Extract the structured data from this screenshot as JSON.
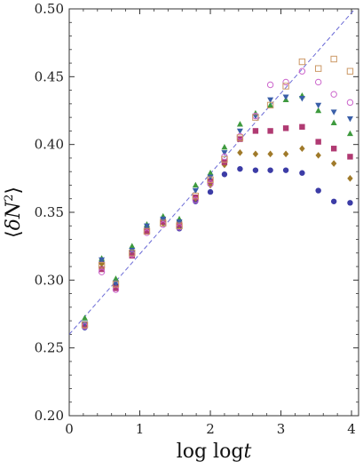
{
  "chart_data": {
    "type": "scatter",
    "title": "",
    "xlabel": "log log",
    "xlabel_italic_var": "t",
    "ylabel_open": "⟨",
    "ylabel_delta": "δ",
    "ylabel_var": "N",
    "ylabel_sup": "2",
    "ylabel_close": "⟩",
    "xlim": [
      0,
      4.1
    ],
    "ylim": [
      0.2,
      0.5
    ],
    "xticks": [
      0,
      1,
      2,
      3,
      4
    ],
    "yticks": [
      0.2,
      0.25,
      0.3,
      0.35,
      0.4,
      0.45,
      0.5
    ],
    "xtick_labels": [
      "0",
      "1",
      "2",
      "3",
      "4"
    ],
    "ytick_labels": [
      "0.20",
      "0.25",
      "0.30",
      "0.35",
      "0.40",
      "0.45",
      "0.50"
    ],
    "grid": false,
    "reference_line": {
      "style": "dashed",
      "color": "#6b6bd6",
      "x": [
        0,
        4.1
      ],
      "y": [
        0.26,
        0.503
      ]
    },
    "series": [
      {
        "marker": "filled-circle",
        "color": "#3c3ca6",
        "x": [
          0.22,
          0.46,
          0.66,
          0.89,
          1.1,
          1.33,
          1.56,
          1.79,
          2.0,
          2.2,
          2.42,
          2.64,
          2.85,
          3.07,
          3.3,
          3.53,
          3.75,
          3.98
        ],
        "y": [
          0.265,
          0.313,
          0.296,
          0.321,
          0.338,
          0.343,
          0.338,
          0.358,
          0.365,
          0.378,
          0.382,
          0.381,
          0.381,
          0.381,
          0.379,
          0.366,
          0.358,
          0.357
        ]
      },
      {
        "marker": "filled-diamond",
        "color": "#a07a2a",
        "x": [
          0.22,
          0.46,
          0.66,
          0.89,
          1.1,
          1.33,
          1.56,
          1.79,
          2.0,
          2.2,
          2.42,
          2.64,
          2.85,
          3.07,
          3.3,
          3.53,
          3.75,
          3.98
        ],
        "y": [
          0.266,
          0.312,
          0.295,
          0.32,
          0.337,
          0.342,
          0.34,
          0.36,
          0.37,
          0.385,
          0.394,
          0.393,
          0.393,
          0.393,
          0.397,
          0.392,
          0.386,
          0.375
        ]
      },
      {
        "marker": "filled-square",
        "color": "#b03a72",
        "x": [
          0.22,
          0.46,
          0.66,
          0.89,
          1.1,
          1.33,
          1.56,
          1.79,
          2.0,
          2.2,
          2.42,
          2.64,
          2.85,
          3.07,
          3.3,
          3.53,
          3.75,
          3.98
        ],
        "y": [
          0.267,
          0.308,
          0.294,
          0.318,
          0.336,
          0.343,
          0.341,
          0.361,
          0.373,
          0.387,
          0.404,
          0.41,
          0.41,
          0.412,
          0.413,
          0.402,
          0.397,
          0.391
        ]
      },
      {
        "marker": "filled-triangle-up",
        "color": "#3e9a3e",
        "x": [
          0.22,
          0.46,
          0.66,
          0.89,
          1.1,
          1.33,
          1.56,
          1.79,
          2.0,
          2.2,
          2.42,
          2.64,
          2.85,
          3.07,
          3.3,
          3.53,
          3.75,
          3.98
        ],
        "y": [
          0.272,
          0.316,
          0.301,
          0.325,
          0.341,
          0.347,
          0.345,
          0.37,
          0.379,
          0.398,
          0.415,
          0.423,
          0.429,
          0.433,
          0.436,
          0.425,
          0.416,
          0.408
        ]
      },
      {
        "marker": "filled-triangle-down",
        "color": "#3a5fa8",
        "x": [
          0.22,
          0.46,
          0.66,
          0.89,
          1.1,
          1.33,
          1.56,
          1.79,
          2.0,
          2.2,
          2.42,
          2.64,
          2.85,
          3.07,
          3.3,
          3.53,
          3.75,
          3.98
        ],
        "y": [
          0.268,
          0.315,
          0.298,
          0.322,
          0.34,
          0.345,
          0.343,
          0.366,
          0.376,
          0.394,
          0.41,
          0.421,
          0.433,
          0.435,
          0.434,
          0.429,
          0.424,
          0.419
        ]
      },
      {
        "marker": "open-circle",
        "color": "#cc66cc",
        "x": [
          0.22,
          0.46,
          0.66,
          0.89,
          1.1,
          1.33,
          1.56,
          1.79,
          2.0,
          2.2,
          2.42,
          2.64,
          2.85,
          3.07,
          3.3,
          3.53,
          3.75,
          3.98
        ],
        "y": [
          0.266,
          0.306,
          0.293,
          0.319,
          0.335,
          0.341,
          0.339,
          0.359,
          0.371,
          0.391,
          0.406,
          0.421,
          0.444,
          0.446,
          0.454,
          0.446,
          0.437,
          0.431
        ]
      },
      {
        "marker": "open-square",
        "color": "#cc9966",
        "x": [
          0.22,
          0.46,
          0.66,
          0.89,
          1.1,
          1.33,
          1.56,
          1.79,
          2.0,
          2.2,
          2.42,
          2.64,
          2.85,
          3.07,
          3.3,
          3.53,
          3.75,
          3.98
        ],
        "y": [
          0.267,
          0.311,
          0.297,
          0.32,
          0.336,
          0.342,
          0.34,
          0.362,
          0.374,
          0.389,
          0.405,
          0.42,
          0.429,
          0.443,
          0.461,
          0.456,
          0.463,
          0.454
        ]
      }
    ]
  }
}
